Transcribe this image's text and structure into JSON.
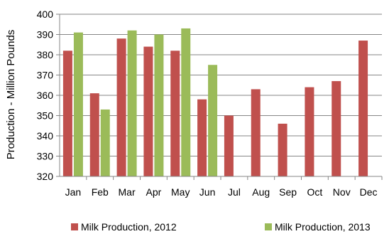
{
  "chart_data": {
    "type": "bar",
    "title": "",
    "xlabel": "",
    "ylabel": "Production - Million Pounds",
    "ylim": [
      320,
      400
    ],
    "yticks": [
      320,
      330,
      340,
      350,
      360,
      370,
      380,
      390,
      400
    ],
    "grid": true,
    "legend_position": "bottom",
    "categories": [
      "Jan",
      "Feb",
      "Mar",
      "Apr",
      "May",
      "Jun",
      "Jul",
      "Aug",
      "Sep",
      "Oct",
      "Nov",
      "Dec"
    ],
    "series": [
      {
        "name": "Milk Production, 2012",
        "color": "#c0504d",
        "values": [
          382,
          361,
          388,
          384,
          382,
          358,
          350,
          363,
          346,
          364,
          367,
          387
        ]
      },
      {
        "name": "Milk Production, 2013",
        "color": "#9bbb59",
        "values": [
          391,
          353,
          392,
          390,
          393,
          375,
          null,
          null,
          null,
          null,
          null,
          null
        ]
      }
    ]
  }
}
